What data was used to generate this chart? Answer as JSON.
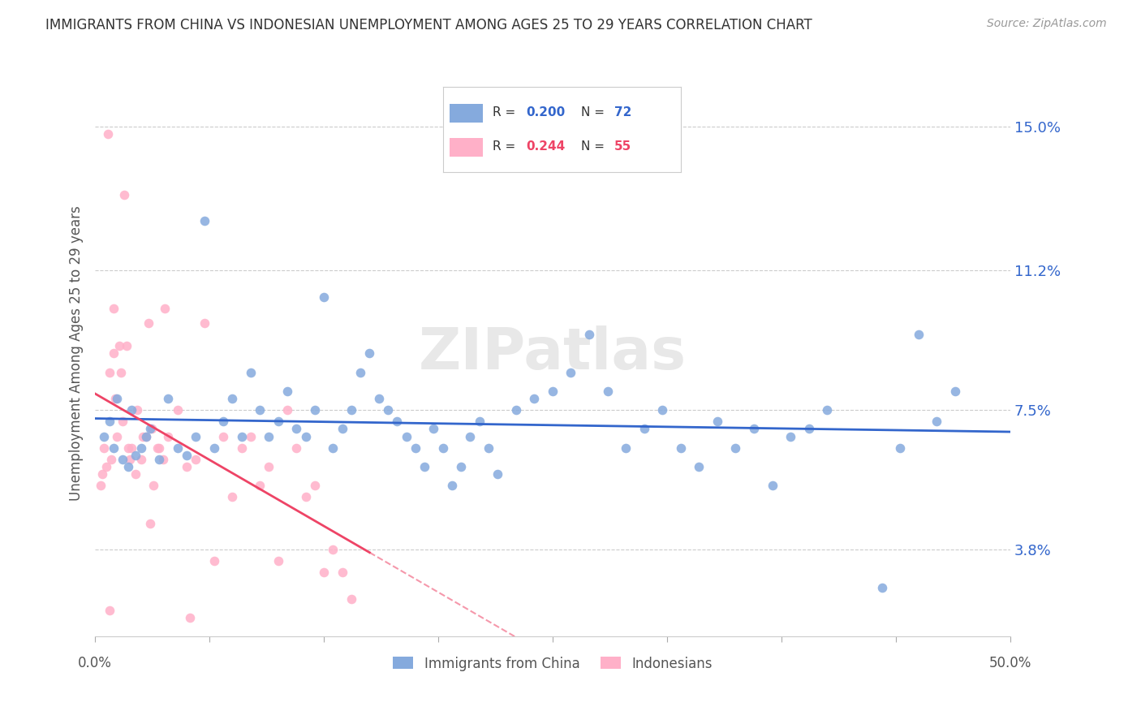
{
  "title": "IMMIGRANTS FROM CHINA VS INDONESIAN UNEMPLOYMENT AMONG AGES 25 TO 29 YEARS CORRELATION CHART",
  "source": "Source: ZipAtlas.com",
  "ylabel": "Unemployment Among Ages 25 to 29 years",
  "ytick_values": [
    3.8,
    7.5,
    11.2,
    15.0
  ],
  "xmin": 0.0,
  "xmax": 50.0,
  "ymin": 1.5,
  "ymax": 16.5,
  "blue_color": "#85AADD",
  "pink_color": "#FFB0C8",
  "trend_blue": "#3366CC",
  "trend_pink": "#EE4466",
  "series1_label": "Immigrants from China",
  "series2_label": "Indonesians",
  "R_blue": "0.200",
  "N_blue": "72",
  "R_pink": "0.244",
  "N_pink": "55",
  "blue_scatter_x": [
    0.5,
    0.8,
    1.0,
    1.2,
    1.5,
    1.8,
    2.0,
    2.2,
    2.5,
    2.8,
    3.0,
    3.5,
    4.0,
    4.5,
    5.0,
    5.5,
    6.0,
    6.5,
    7.0,
    7.5,
    8.0,
    8.5,
    9.0,
    9.5,
    10.0,
    10.5,
    11.0,
    11.5,
    12.0,
    12.5,
    13.0,
    13.5,
    14.0,
    14.5,
    15.0,
    15.5,
    16.0,
    16.5,
    17.0,
    17.5,
    18.0,
    18.5,
    19.0,
    19.5,
    20.0,
    20.5,
    21.0,
    21.5,
    22.0,
    23.0,
    24.0,
    25.0,
    26.0,
    27.0,
    28.0,
    29.0,
    30.0,
    31.0,
    32.0,
    33.0,
    34.0,
    35.0,
    36.0,
    37.0,
    38.0,
    39.0,
    40.0,
    43.0,
    44.0,
    45.0,
    46.0,
    47.0
  ],
  "blue_scatter_y": [
    6.8,
    7.2,
    6.5,
    7.8,
    6.2,
    6.0,
    7.5,
    6.3,
    6.5,
    6.8,
    7.0,
    6.2,
    7.8,
    6.5,
    6.3,
    6.8,
    12.5,
    6.5,
    7.2,
    7.8,
    6.8,
    8.5,
    7.5,
    6.8,
    7.2,
    8.0,
    7.0,
    6.8,
    7.5,
    10.5,
    6.5,
    7.0,
    7.5,
    8.5,
    9.0,
    7.8,
    7.5,
    7.2,
    6.8,
    6.5,
    6.0,
    7.0,
    6.5,
    5.5,
    6.0,
    6.8,
    7.2,
    6.5,
    5.8,
    7.5,
    7.8,
    8.0,
    8.5,
    9.5,
    8.0,
    6.5,
    7.0,
    7.5,
    6.5,
    6.0,
    7.2,
    6.5,
    7.0,
    5.5,
    6.8,
    7.0,
    7.5,
    2.8,
    6.5,
    9.5,
    7.2,
    8.0
  ],
  "pink_scatter_x": [
    0.3,
    0.5,
    0.8,
    1.0,
    1.2,
    1.5,
    1.8,
    0.4,
    0.6,
    0.9,
    1.1,
    1.4,
    1.7,
    2.0,
    2.3,
    2.6,
    2.9,
    3.2,
    3.5,
    0.7,
    1.0,
    1.3,
    1.6,
    1.9,
    2.2,
    2.5,
    2.8,
    3.1,
    3.4,
    3.7,
    4.0,
    4.5,
    5.0,
    5.5,
    6.0,
    6.5,
    7.0,
    7.5,
    8.0,
    8.5,
    9.0,
    9.5,
    10.0,
    10.5,
    11.0,
    11.5,
    12.0,
    12.5,
    13.0,
    13.5,
    14.0,
    3.8,
    0.8,
    5.2,
    3.0
  ],
  "pink_scatter_y": [
    5.5,
    6.5,
    8.5,
    9.0,
    6.8,
    7.2,
    6.5,
    5.8,
    6.0,
    6.2,
    7.8,
    8.5,
    9.2,
    6.5,
    7.5,
    6.8,
    9.8,
    5.5,
    6.5,
    14.8,
    10.2,
    9.2,
    13.2,
    6.2,
    5.8,
    6.2,
    6.8,
    7.0,
    6.5,
    6.2,
    6.8,
    7.5,
    6.0,
    6.2,
    9.8,
    3.5,
    6.8,
    5.2,
    6.5,
    6.8,
    5.5,
    6.0,
    3.5,
    7.5,
    6.5,
    5.2,
    5.5,
    3.2,
    3.8,
    3.2,
    2.5,
    10.2,
    2.2,
    2.0,
    4.5
  ]
}
